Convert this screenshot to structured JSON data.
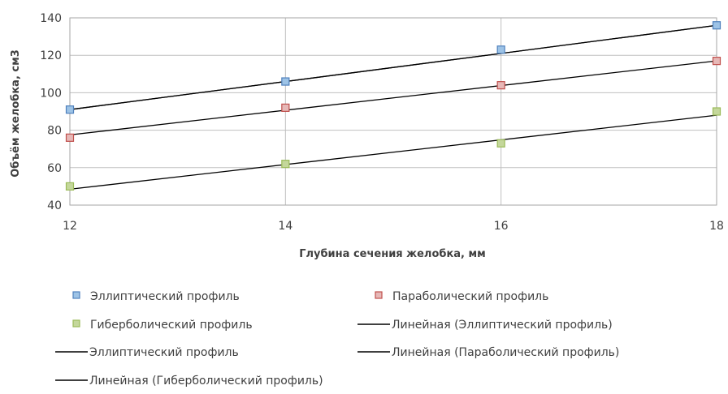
{
  "chart_data": {
    "type": "scatter",
    "xlabel": "Глубина сечения желобка, мм",
    "ylabel": "Объём желобка, см3",
    "xlim": [
      12,
      18
    ],
    "ylim": [
      40,
      140
    ],
    "x_ticks": [
      "12",
      "14",
      "16",
      "18"
    ],
    "y_ticks": [
      "40",
      "60",
      "80",
      "100",
      "120",
      "140"
    ],
    "grid": true,
    "legend_position": "bottom",
    "x": [
      12,
      14,
      16,
      18
    ],
    "series": [
      {
        "name": "Эллиптический профиль",
        "marker": "square",
        "color": "#4f81bd",
        "fill": "#9dc3e6",
        "values": [
          91,
          106,
          123,
          136
        ]
      },
      {
        "name": "Параболический профиль",
        "marker": "square",
        "color": "#c0504d",
        "fill": "#e6b8b7",
        "values": [
          76,
          92,
          104,
          117
        ]
      },
      {
        "name": "Гиберболический профиль",
        "marker": "square",
        "color": "#9bbb59",
        "fill": "#c4d79b",
        "values": [
          50,
          62,
          73,
          90
        ]
      }
    ],
    "lines": [
      {
        "name": "Линейная (Эллиптический профиль)",
        "color": "#000000",
        "from": [
          12,
          91
        ],
        "to": [
          18,
          136
        ]
      },
      {
        "name": "Эллиптический профиль",
        "color": "#000000",
        "from": [
          12,
          91
        ],
        "to": [
          18,
          136
        ]
      },
      {
        "name": "Линейная (Параболический профиль)",
        "color": "#000000",
        "from": [
          12,
          77.5
        ],
        "to": [
          18,
          117
        ]
      },
      {
        "name": "Линейная (Гиберболический профиль)",
        "color": "#000000",
        "from": [
          12,
          48.5
        ],
        "to": [
          18,
          88
        ]
      }
    ],
    "legend": [
      {
        "label": "Эллиптический профиль",
        "kind": "marker",
        "series": 0
      },
      {
        "label": "Параболический профиль",
        "kind": "marker",
        "series": 1
      },
      {
        "label": "Гиберболический профиль",
        "kind": "marker",
        "series": 2
      },
      {
        "label": "Линейная (Эллиптический профиль)",
        "kind": "line"
      },
      {
        "label": "Эллиптический профиль",
        "kind": "line"
      },
      {
        "label": "Линейная (Параболический профиль)",
        "kind": "line"
      },
      {
        "label": "Линейная (Гиберболический профиль)",
        "kind": "line"
      }
    ]
  }
}
